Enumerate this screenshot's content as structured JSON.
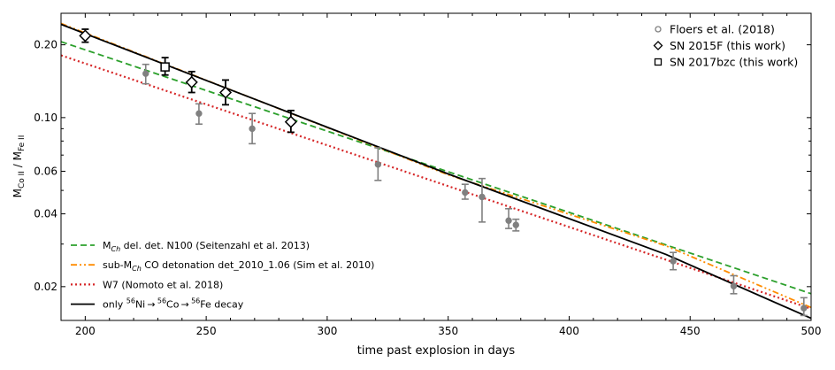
{
  "chart_data": {
    "type": "scatter",
    "title": "",
    "xlabel": "time past explosion in days",
    "ylabel_main": "M",
    "ylabel_sub1": "Co II",
    "ylabel_sep": " / M",
    "ylabel_sub2": "Fe II",
    "xlim": [
      190,
      500
    ],
    "ylim": [
      0.0145,
      0.27
    ],
    "yscale": "log",
    "xticks": [
      {
        "v": 200,
        "label": "200"
      },
      {
        "v": 250,
        "label": "250"
      },
      {
        "v": 300,
        "label": "300"
      },
      {
        "v": 350,
        "label": "350"
      },
      {
        "v": 400,
        "label": "400"
      },
      {
        "v": 450,
        "label": "450"
      },
      {
        "v": 500,
        "label": "500"
      }
    ],
    "yticks": [
      {
        "v": 0.02,
        "label": "0.02"
      },
      {
        "v": 0.04,
        "label": "0.04"
      },
      {
        "v": 0.06,
        "label": "0.06"
      },
      {
        "v": 0.1,
        "label": "0.10"
      },
      {
        "v": 0.2,
        "label": "0.20"
      }
    ],
    "legend_top": {
      "placement": "top-right",
      "entries": [
        {
          "label": "Floers et al. (2018)",
          "marker": "circle"
        },
        {
          "label": "SN 2015F (this work)",
          "marker": "diamond"
        },
        {
          "label": "SN 2017bzc (this work)",
          "marker": "square"
        }
      ]
    },
    "legend_bottom": {
      "placement": "lower-left",
      "entries": [
        {
          "pre": "M",
          "sub": "Ch",
          "post": " del. det. N100 (Seitenzahl et al. 2013)",
          "color": "#2ca02c",
          "dash": "7,4"
        },
        {
          "pre": "sub-M",
          "sub": "Ch",
          "post": " CO detonation det_2010_1.06 (Sim et al. 2010)",
          "color": "#ff8c00",
          "dash": "7,3,2,3,2,3"
        },
        {
          "pre": "W7 (Nomoto et al. 2018)",
          "sub": "",
          "post": "",
          "color": "#d62728",
          "dash": "2,3"
        },
        {
          "pre": "only ",
          "sup1": "56",
          "t1": "Ni → ",
          "sup2": "56",
          "t2": "Co → ",
          "sup3": "56",
          "t3": "Fe decay",
          "color": "#000000",
          "dash": ""
        }
      ]
    },
    "series": [
      {
        "name": "Floers et al. (2018)",
        "marker": "circle",
        "color": "#808080",
        "points": [
          {
            "x": 225,
            "y": 0.152,
            "lo": 0.138,
            "hi": 0.166
          },
          {
            "x": 247,
            "y": 0.104,
            "lo": 0.094,
            "hi": 0.114
          },
          {
            "x": 269,
            "y": 0.09,
            "lo": 0.078,
            "hi": 0.104
          },
          {
            "x": 321,
            "y": 0.064,
            "lo": 0.055,
            "hi": 0.075
          },
          {
            "x": 357,
            "y": 0.049,
            "lo": 0.046,
            "hi": 0.053
          },
          {
            "x": 364,
            "y": 0.047,
            "lo": 0.037,
            "hi": 0.056
          },
          {
            "x": 375,
            "y": 0.0375,
            "lo": 0.0348,
            "hi": 0.042
          },
          {
            "x": 378,
            "y": 0.036,
            "lo": 0.034,
            "hi": 0.038
          },
          {
            "x": 443,
            "y": 0.0255,
            "lo": 0.0235,
            "hi": 0.0277
          },
          {
            "x": 468,
            "y": 0.0201,
            "lo": 0.0187,
            "hi": 0.0222
          },
          {
            "x": 497,
            "y": 0.0163,
            "lo": 0.0152,
            "hi": 0.018
          }
        ]
      },
      {
        "name": "SN 2015F (this work)",
        "marker": "diamond",
        "color": "#000000",
        "points": [
          {
            "x": 200,
            "y": 0.218,
            "lo": 0.205,
            "hi": 0.232
          },
          {
            "x": 244,
            "y": 0.14,
            "lo": 0.127,
            "hi": 0.155
          },
          {
            "x": 258,
            "y": 0.127,
            "lo": 0.113,
            "hi": 0.143
          },
          {
            "x": 285,
            "y": 0.096,
            "lo": 0.087,
            "hi": 0.107
          }
        ]
      },
      {
        "name": "SN 2017bzc (this work)",
        "marker": "square",
        "color": "#000000",
        "points": [
          {
            "x": 233,
            "y": 0.162,
            "lo": 0.15,
            "hi": 0.177
          }
        ]
      }
    ],
    "models": [
      {
        "name": "MCh del. det. N100 (Seitenzahl et al. 2013)",
        "color": "#2ca02c",
        "dash": "7,4",
        "points": [
          [
            190,
            0.206
          ],
          [
            500,
            0.0187
          ]
        ]
      },
      {
        "name": "sub-MCh CO detonation det_2010_1.06 (Sim et al. 2010)",
        "color": "#ff8c00",
        "dash": "7,3,2,3,2,3",
        "points": [
          [
            190,
            0.245
          ],
          [
            350,
            0.058
          ],
          [
            440,
            0.0295
          ],
          [
            500,
            0.0164
          ]
        ]
      },
      {
        "name": "W7 (Nomoto et al. 2018)",
        "color": "#d62728",
        "dash": "2,3",
        "points": [
          [
            190,
            0.181
          ],
          [
            500,
            0.0162
          ]
        ]
      },
      {
        "name": "only 56Ni → 56Co → 56Fe decay",
        "color": "#000000",
        "dash": "",
        "points": [
          [
            190,
            0.243
          ],
          [
            350,
            0.0585
          ],
          [
            440,
            0.0272
          ],
          [
            500,
            0.0148
          ]
        ]
      }
    ]
  }
}
